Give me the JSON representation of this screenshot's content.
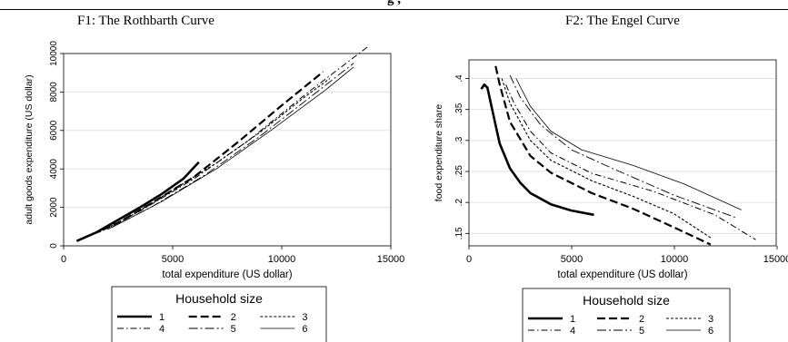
{
  "header": {
    "fragment": "g                                        ,"
  },
  "chart_data": [
    {
      "type": "line",
      "title": "F1:  The Rothbarth Curve",
      "xlabel": "total expenditure (US dollar)",
      "ylabel": "adult goods expenditure (US dollar)",
      "xlim": [
        0,
        15000
      ],
      "ylim": [
        0,
        10000
      ],
      "xticks": [
        "0",
        "5000",
        "10000",
        "15000"
      ],
      "yticks": [
        "0",
        "2000",
        "4000",
        "6000",
        "8000",
        "10000"
      ],
      "grid": "horizontal",
      "legend": {
        "title": "Household size",
        "placement": "bottom"
      },
      "series": [
        {
          "name": "1",
          "style": "solid-thick",
          "points": [
            [
              600,
              250
            ],
            [
              1500,
              700
            ],
            [
              2500,
              1350
            ],
            [
              3500,
              2000
            ],
            [
              4500,
              2700
            ],
            [
              5500,
              3500
            ],
            [
              6200,
              4350
            ]
          ]
        },
        {
          "name": "2",
          "style": "dash-thick",
          "points": [
            [
              1300,
              600
            ],
            [
              2500,
              1200
            ],
            [
              4000,
              2200
            ],
            [
              6000,
              3600
            ],
            [
              8000,
              5400
            ],
            [
              10000,
              7300
            ],
            [
              11900,
              9050
            ]
          ]
        },
        {
          "name": "3",
          "style": "short-dash",
          "points": [
            [
              1600,
              700
            ],
            [
              3000,
              1500
            ],
            [
              5000,
              2900
            ],
            [
              7000,
              4300
            ],
            [
              9000,
              5900
            ],
            [
              11000,
              7700
            ],
            [
              12200,
              8700
            ]
          ]
        },
        {
          "name": "4",
          "style": "dash-dot",
          "points": [
            [
              1800,
              800
            ],
            [
              3500,
              1800
            ],
            [
              6000,
              3500
            ],
            [
              8500,
              5500
            ],
            [
              11000,
              7800
            ],
            [
              14000,
              10400
            ]
          ]
        },
        {
          "name": "5",
          "style": "long-dash-dot",
          "points": [
            [
              2000,
              850
            ],
            [
              4000,
              2000
            ],
            [
              6500,
              3700
            ],
            [
              9000,
              5700
            ],
            [
              11500,
              7900
            ],
            [
              13300,
              9500
            ]
          ]
        },
        {
          "name": "6",
          "style": "thin-solid",
          "points": [
            [
              2200,
              950
            ],
            [
              4500,
              2300
            ],
            [
              7000,
              4000
            ],
            [
              9500,
              6000
            ],
            [
              12000,
              8100
            ],
            [
              13300,
              9300
            ]
          ]
        }
      ]
    },
    {
      "type": "line",
      "title": "F2: The Engel Curve",
      "xlabel": "total expenditure (US dollar)",
      "ylabel": "food expenditure share",
      "xlim": [
        0,
        15000
      ],
      "ylim": [
        0.13,
        0.43
      ],
      "xticks": [
        "0",
        "5000",
        "10000",
        "15000"
      ],
      "yticks": [
        ".15",
        ".2",
        ".25",
        ".3",
        ".35",
        ".4"
      ],
      "grid": "horizontal",
      "legend": {
        "title": "Household size",
        "placement": "bottom"
      },
      "series": [
        {
          "name": "1",
          "style": "solid-thick",
          "points": [
            [
              600,
              0.383
            ],
            [
              750,
              0.39
            ],
            [
              900,
              0.385
            ],
            [
              1200,
              0.34
            ],
            [
              1500,
              0.295
            ],
            [
              2000,
              0.255
            ],
            [
              2500,
              0.232
            ],
            [
              3000,
              0.215
            ],
            [
              4000,
              0.197
            ],
            [
              5000,
              0.187
            ],
            [
              6100,
              0.18
            ]
          ]
        },
        {
          "name": "2",
          "style": "dash-thick",
          "points": [
            [
              1300,
              0.42
            ],
            [
              1500,
              0.39
            ],
            [
              2000,
              0.33
            ],
            [
              3000,
              0.275
            ],
            [
              4000,
              0.248
            ],
            [
              6000,
              0.215
            ],
            [
              8000,
              0.19
            ],
            [
              10000,
              0.16
            ],
            [
              11800,
              0.132
            ]
          ]
        },
        {
          "name": "3",
          "style": "short-dash",
          "points": [
            [
              1600,
              0.4
            ],
            [
              2000,
              0.36
            ],
            [
              3000,
              0.3
            ],
            [
              4000,
              0.268
            ],
            [
              6000,
              0.235
            ],
            [
              8000,
              0.21
            ],
            [
              10000,
              0.182
            ],
            [
              11800,
              0.143
            ]
          ]
        },
        {
          "name": "4",
          "style": "dash-dot",
          "points": [
            [
              1800,
              0.39
            ],
            [
              2200,
              0.36
            ],
            [
              3000,
              0.315
            ],
            [
              4000,
              0.28
            ],
            [
              6000,
              0.247
            ],
            [
              9000,
              0.218
            ],
            [
              12000,
              0.18
            ],
            [
              14000,
              0.14
            ]
          ]
        },
        {
          "name": "5",
          "style": "long-dash-dot",
          "points": [
            [
              2000,
              0.405
            ],
            [
              2500,
              0.37
            ],
            [
              3500,
              0.325
            ],
            [
              5000,
              0.285
            ],
            [
              7000,
              0.255
            ],
            [
              10000,
              0.212
            ],
            [
              13000,
              0.176
            ]
          ]
        },
        {
          "name": "6",
          "style": "thin-solid",
          "points": [
            [
              2300,
              0.4
            ],
            [
              3000,
              0.355
            ],
            [
              4000,
              0.315
            ],
            [
              5500,
              0.285
            ],
            [
              8000,
              0.26
            ],
            [
              10500,
              0.23
            ],
            [
              13300,
              0.188
            ]
          ]
        }
      ]
    }
  ]
}
